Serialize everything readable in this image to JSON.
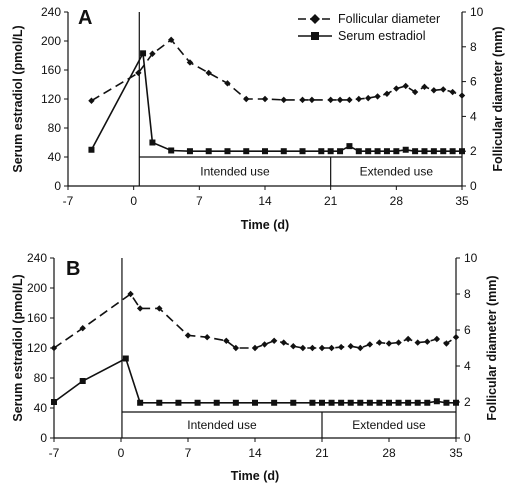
{
  "chart_data": [
    {
      "type": "line",
      "panel_label": "A",
      "xlabel": "Time (d)",
      "ylabel_left": "Serum estradiol (pmol/L)",
      "ylabel_right": "Follicular diameter (mm)",
      "x_ticks": [
        -7,
        0,
        7,
        14,
        21,
        28,
        35
      ],
      "y_left_ticks": [
        0,
        40,
        80,
        120,
        160,
        200,
        240
      ],
      "y_right_ticks": [
        0,
        2,
        4,
        6,
        8,
        10
      ],
      "xlim": [
        -7,
        35
      ],
      "ylim_left": [
        0,
        240
      ],
      "ylim_right": [
        0,
        10
      ],
      "legend": {
        "placement": "top-right",
        "entries": [
          "Follicular diameter",
          "Serum estradiol"
        ]
      },
      "periods": [
        {
          "label": "Intended use",
          "start": 0,
          "end": 21
        },
        {
          "label": "Extended use",
          "start": 21,
          "end": 35
        }
      ],
      "series": [
        {
          "name": "Follicular diameter",
          "axis": "right",
          "style": "dashed",
          "marker": "diamond",
          "x": [
            -4.5,
            0.5,
            2,
            4,
            6,
            8,
            10,
            12,
            14,
            16,
            18,
            19,
            21,
            22,
            23,
            24,
            25,
            26,
            27,
            28,
            29,
            30,
            31,
            32,
            33,
            34,
            35
          ],
          "y": [
            4.9,
            6.5,
            7.6,
            8.4,
            7.1,
            6.5,
            5.9,
            5.0,
            5.0,
            4.95,
            4.95,
            4.95,
            4.95,
            4.95,
            4.95,
            5.0,
            5.05,
            5.15,
            5.3,
            5.6,
            5.75,
            5.4,
            5.7,
            5.5,
            5.55,
            5.4,
            5.2
          ]
        },
        {
          "name": "Serum estradiol",
          "axis": "left",
          "style": "solid",
          "marker": "square",
          "x": [
            -4.5,
            1,
            2,
            4,
            6,
            8,
            10,
            12,
            14,
            16,
            18,
            20,
            21,
            22,
            23,
            24,
            25,
            26,
            27,
            28,
            29,
            30,
            31,
            32,
            33,
            34,
            35
          ],
          "y": [
            50,
            183,
            60,
            49,
            48,
            48,
            48,
            48,
            48,
            48,
            48,
            48,
            48,
            48,
            55,
            48,
            48,
            48,
            48,
            48,
            50,
            48,
            48,
            48,
            48,
            48,
            48
          ]
        }
      ]
    },
    {
      "type": "line",
      "panel_label": "B",
      "xlabel": "Time (d)",
      "ylabel_left": "Serum estradiol (pmol/L)",
      "ylabel_right": "Follicular diameter (mm)",
      "x_ticks": [
        -7,
        0,
        7,
        14,
        21,
        28,
        35
      ],
      "y_left_ticks": [
        0,
        40,
        80,
        120,
        160,
        200,
        240
      ],
      "y_right_ticks": [
        0,
        2,
        4,
        6,
        8,
        10
      ],
      "xlim": [
        -7,
        35
      ],
      "ylim_left": [
        0,
        240
      ],
      "ylim_right": [
        0,
        10
      ],
      "periods": [
        {
          "label": "Intended use",
          "start": 0,
          "end": 21
        },
        {
          "label": "Extended use",
          "start": 21,
          "end": 35
        }
      ],
      "series": [
        {
          "name": "Follicular diameter",
          "axis": "right",
          "style": "dashed",
          "marker": "diamond",
          "x": [
            -7,
            -4,
            1,
            2,
            4,
            7,
            9,
            11,
            12,
            14,
            15,
            16,
            17,
            18,
            19,
            20,
            21,
            22,
            23,
            24,
            25,
            26,
            27,
            28,
            29,
            30,
            31,
            32,
            33,
            34,
            35
          ],
          "y": [
            5.0,
            6.1,
            8.0,
            7.2,
            7.2,
            5.7,
            5.6,
            5.4,
            5.0,
            5.0,
            5.2,
            5.4,
            5.3,
            5.1,
            5.0,
            5.0,
            5.0,
            5.0,
            5.05,
            5.1,
            5.0,
            5.2,
            5.3,
            5.25,
            5.3,
            5.5,
            5.3,
            5.35,
            5.5,
            5.25,
            5.6
          ]
        },
        {
          "name": "Serum estradiol",
          "axis": "left",
          "style": "solid",
          "marker": "square",
          "x": [
            -7,
            -4,
            0.5,
            2,
            4,
            6,
            8,
            10,
            12,
            14,
            16,
            18,
            20,
            21,
            22,
            23,
            24,
            25,
            26,
            27,
            28,
            29,
            30,
            31,
            32,
            33,
            34,
            35
          ],
          "y": [
            48,
            76,
            106,
            47,
            47,
            47,
            47,
            47,
            47,
            47,
            47,
            47,
            47,
            47,
            47,
            47,
            47,
            47,
            47,
            47,
            47,
            47,
            47,
            47,
            47,
            49,
            47,
            47
          ]
        }
      ]
    }
  ]
}
